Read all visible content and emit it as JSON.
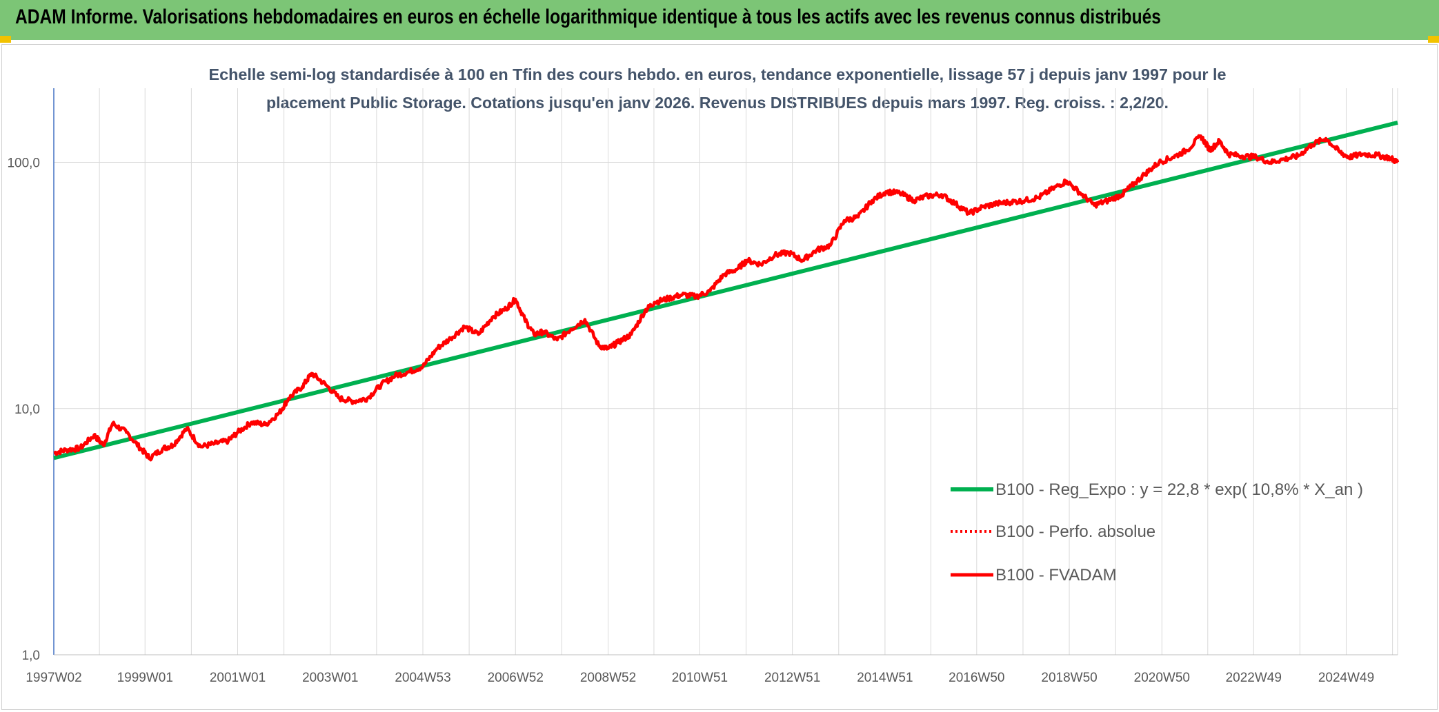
{
  "header": {
    "title": "ADAM Informe. Valorisations hebdomadaires en euros en échelle logarithmique identique à tous les actifs avec les revenus connus distribués"
  },
  "colors": {
    "header_bg": "#7cc576",
    "regression": "#00b050",
    "series": "#ff0000",
    "grid": "#d9d9d9",
    "axis": "#4472c4",
    "corner": "#f2c200"
  },
  "chart_data": {
    "type": "line",
    "title_line1": "Echelle semi-log standardisée à 100 en Tfin des cours hebdo. en euros, tendance exponentielle, lissage 57 j depuis janv 1997 pour le",
    "title_line2": "placement Public Storage. Cotations jusqu'en janv 2026. Revenus DISTRIBUES depuis mars 1997. Reg. croiss. : 2,2/20.",
    "y_scale": "log",
    "ylim": [
      1,
      200
    ],
    "y_ticks": [
      {
        "value": 1,
        "label": "1,0"
      },
      {
        "value": 10,
        "label": "10,0"
      },
      {
        "value": 100,
        "label": "100,0"
      }
    ],
    "xlim": [
      1997.03,
      2026.05
    ],
    "x_ticks": [
      {
        "value": 1997.03,
        "label": "1997W02"
      },
      {
        "value": 1999.0,
        "label": "1999W01"
      },
      {
        "value": 2001.0,
        "label": "2001W01"
      },
      {
        "value": 2003.0,
        "label": "2003W01"
      },
      {
        "value": 2005.0,
        "label": "2004W53"
      },
      {
        "value": 2007.0,
        "label": "2006W52"
      },
      {
        "value": 2009.0,
        "label": "2008W52"
      },
      {
        "value": 2010.98,
        "label": "2010W51"
      },
      {
        "value": 2012.98,
        "label": "2012W51"
      },
      {
        "value": 2014.98,
        "label": "2014W51"
      },
      {
        "value": 2016.96,
        "label": "2016W50"
      },
      {
        "value": 2018.96,
        "label": "2018W50"
      },
      {
        "value": 2020.96,
        "label": "2020W50"
      },
      {
        "value": 2022.94,
        "label": "2022W49"
      },
      {
        "value": 2024.94,
        "label": "2024W49"
      }
    ],
    "legend_position": "bottom-right",
    "series": [
      {
        "name": "B100 - Reg_Expo : y = 22,8 * exp( 10,8% *  X_an )",
        "style": "solid-green-thick",
        "x": [
          1997.03,
          2026.05
        ],
        "y": [
          6.3,
          145
        ]
      },
      {
        "name": "B100 - Perfo. absolue",
        "style": "dotted-red",
        "x": [],
        "y": []
      },
      {
        "name": "B100 - FVADAM",
        "style": "solid-red-thick",
        "x": [
          1997.03,
          1997.3,
          1997.6,
          1997.9,
          1998.1,
          1998.3,
          1998.6,
          1998.9,
          1999.1,
          1999.4,
          1999.6,
          1999.9,
          2000.2,
          2000.5,
          2000.8,
          2001.0,
          2001.3,
          2001.6,
          2001.9,
          2002.1,
          2002.4,
          2002.6,
          2002.9,
          2003.2,
          2003.5,
          2003.8,
          2004.1,
          2004.4,
          2004.7,
          2005.0,
          2005.3,
          2005.6,
          2005.9,
          2006.2,
          2006.5,
          2006.8,
          2007.0,
          2007.2,
          2007.4,
          2007.6,
          2007.9,
          2008.2,
          2008.5,
          2008.8,
          2009.0,
          2009.2,
          2009.5,
          2009.8,
          2010.0,
          2010.3,
          2010.6,
          2010.9,
          2011.2,
          2011.5,
          2011.8,
          2012.0,
          2012.3,
          2012.6,
          2012.9,
          2013.2,
          2013.5,
          2013.8,
          2014.1,
          2014.4,
          2014.7,
          2015.0,
          2015.3,
          2015.6,
          2015.9,
          2016.2,
          2016.5,
          2016.8,
          2017.1,
          2017.4,
          2017.7,
          2018.0,
          2018.3,
          2018.6,
          2018.9,
          2019.2,
          2019.5,
          2019.8,
          2020.1,
          2020.3,
          2020.6,
          2020.9,
          2021.2,
          2021.5,
          2021.8,
          2022.0,
          2022.2,
          2022.4,
          2022.7,
          2023.0,
          2023.3,
          2023.6,
          2023.9,
          2024.2,
          2024.5,
          2024.8,
          2025.0,
          2025.3,
          2025.6,
          2025.9,
          2026.05
        ],
        "y": [
          6.6,
          6.8,
          6.9,
          7.8,
          7.1,
          8.7,
          8.0,
          6.9,
          6.3,
          6.9,
          7.1,
          8.3,
          7.0,
          7.2,
          7.4,
          8.0,
          8.8,
          8.6,
          9.6,
          11.0,
          12.3,
          13.9,
          12.5,
          11.0,
          10.7,
          11.0,
          12.5,
          13.6,
          14.1,
          14.8,
          17.5,
          19.3,
          21.5,
          20.0,
          23.5,
          25.5,
          27.8,
          23.0,
          20.0,
          20.5,
          19.0,
          21.0,
          23.0,
          18.0,
          17.5,
          18.5,
          20.0,
          25.0,
          27.0,
          28.0,
          29.0,
          28.5,
          30.0,
          35.0,
          37.0,
          40.0,
          38.5,
          42.0,
          43.0,
          40.0,
          44.0,
          46.0,
          58.0,
          60.0,
          70.0,
          76.0,
          75.0,
          70.0,
          73.0,
          74.0,
          68.0,
          62.0,
          66.0,
          68.0,
          69.0,
          70.0,
          72.0,
          78.0,
          84.0,
          75.0,
          67.0,
          70.0,
          74.0,
          80.0,
          90.0,
          100.0,
          105.0,
          112.0,
          128.0,
          112.0,
          122.0,
          108.0,
          106.0,
          105.0,
          100.0,
          103.0,
          106.0,
          118.0,
          125.0,
          110.0,
          105.0,
          108.0,
          107.0,
          104.0,
          100.0
        ]
      }
    ]
  }
}
